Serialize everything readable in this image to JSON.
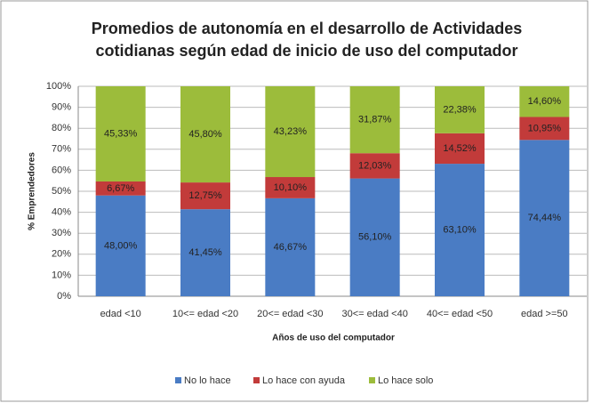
{
  "chart_data": {
    "type": "stacked_bar",
    "title": [
      "Promedios de autonomía en el desarrollo de Actividades",
      "cotidianas según edad de inicio de uso del computador"
    ],
    "x_label": "Años de uso del computador",
    "y_label": "% Emprendedores",
    "categories": [
      "edad <10",
      "10<= edad <20",
      "20<= edad <30",
      "30<= edad <40",
      "40<= edad <50",
      "edad >=50"
    ],
    "series": [
      {
        "name": "No lo hace",
        "color": "#4a7cc4",
        "values": [
          48.0,
          41.45,
          46.67,
          56.1,
          63.1,
          74.44
        ],
        "value_labels": [
          "48,00%",
          "41,45%",
          "46,67%",
          "56,10%",
          "63,10%",
          "74,44%"
        ]
      },
      {
        "name": "Lo hace con ayuda",
        "color": "#c23b3a",
        "values": [
          6.67,
          12.75,
          10.1,
          12.03,
          14.52,
          10.95
        ],
        "value_labels": [
          "6,67%",
          "12,75%",
          "10,10%",
          "12,03%",
          "14,52%",
          "10,95%"
        ]
      },
      {
        "name": "Lo hace solo",
        "color": "#9cbc3b",
        "values": [
          45.33,
          45.8,
          43.23,
          31.87,
          22.38,
          14.6
        ],
        "value_labels": [
          "45,33%",
          "45,80%",
          "43,23%",
          "31,87%",
          "22,38%",
          "14,60%"
        ]
      }
    ],
    "ylim": [
      0,
      100
    ],
    "yticks": [
      {
        "value": 0,
        "label": "0%"
      },
      {
        "value": 10,
        "label": "10%"
      },
      {
        "value": 20,
        "label": "20%"
      },
      {
        "value": 30,
        "label": "30%"
      },
      {
        "value": 40,
        "label": "40%"
      },
      {
        "value": 50,
        "label": "50%"
      },
      {
        "value": 60,
        "label": "60%"
      },
      {
        "value": 70,
        "label": "70%"
      },
      {
        "value": 80,
        "label": "80%"
      },
      {
        "value": 90,
        "label": "90%"
      },
      {
        "value": 100,
        "label": "100%"
      }
    ],
    "grid": true,
    "legend": "bottom"
  }
}
